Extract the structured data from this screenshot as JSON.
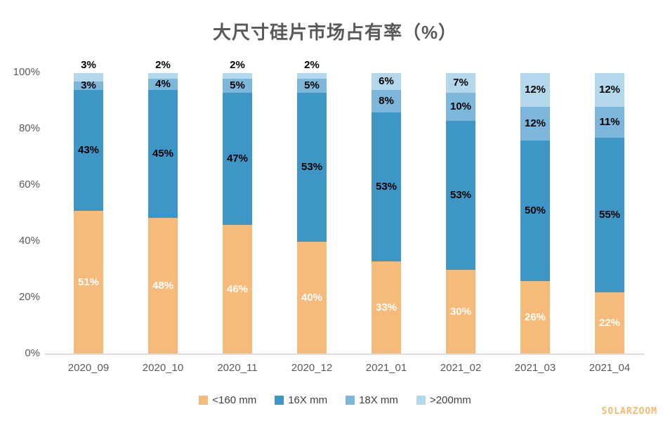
{
  "title": "大尺寸硅片市场占有率（%）",
  "watermark": "SOLARZOOM",
  "axis_line_color": "#dcdcdc",
  "chart_data": {
    "type": "bar",
    "stacked": true,
    "title": "大尺寸硅片市场占有率（%）",
    "xlabel": "",
    "ylabel": "",
    "ylim": [
      0,
      100
    ],
    "grid": false,
    "legend_position": "bottom",
    "yticks": [
      "0%",
      "20%",
      "40%",
      "60%",
      "80%",
      "100%"
    ],
    "ytick_values": [
      0,
      20,
      40,
      60,
      80,
      100
    ],
    "categories": [
      "2020_09",
      "2020_10",
      "2020_11",
      "2020_12",
      "2021_01",
      "2021_02",
      "2021_03",
      "2021_04"
    ],
    "series": [
      {
        "name": "<160 mm",
        "color": "#f6ba7a",
        "label_color": "#ffffff",
        "values": [
          51,
          48,
          46,
          40,
          33,
          30,
          26,
          22
        ],
        "labels": [
          "51%",
          "48%",
          "46%",
          "40%",
          "33%",
          "30%",
          "26%",
          "22%"
        ]
      },
      {
        "name": "16X mm",
        "color": "#3e96c7",
        "label_color": "#000000",
        "values": [
          43,
          45,
          47,
          53,
          53,
          53,
          50,
          55
        ],
        "labels": [
          "43%",
          "45%",
          "47%",
          "53%",
          "53%",
          "53%",
          "50%",
          "55%"
        ]
      },
      {
        "name": "18X mm",
        "color": "#7cb6da",
        "label_color": "#000000",
        "values": [
          3,
          4,
          5,
          5,
          8,
          10,
          12,
          11
        ],
        "labels": [
          "3%",
          "4%",
          "5%",
          "5%",
          "8%",
          "10%",
          "12%",
          "11%"
        ]
      },
      {
        "name": ">200mm",
        "color": "#b3d7eb",
        "label_color": "#000000",
        "values": [
          3,
          2,
          2,
          2,
          6,
          7,
          12,
          12
        ],
        "labels": [
          "3%",
          "2%",
          "2%",
          "2%",
          "6%",
          "7%",
          "12%",
          "12%"
        ]
      }
    ]
  }
}
